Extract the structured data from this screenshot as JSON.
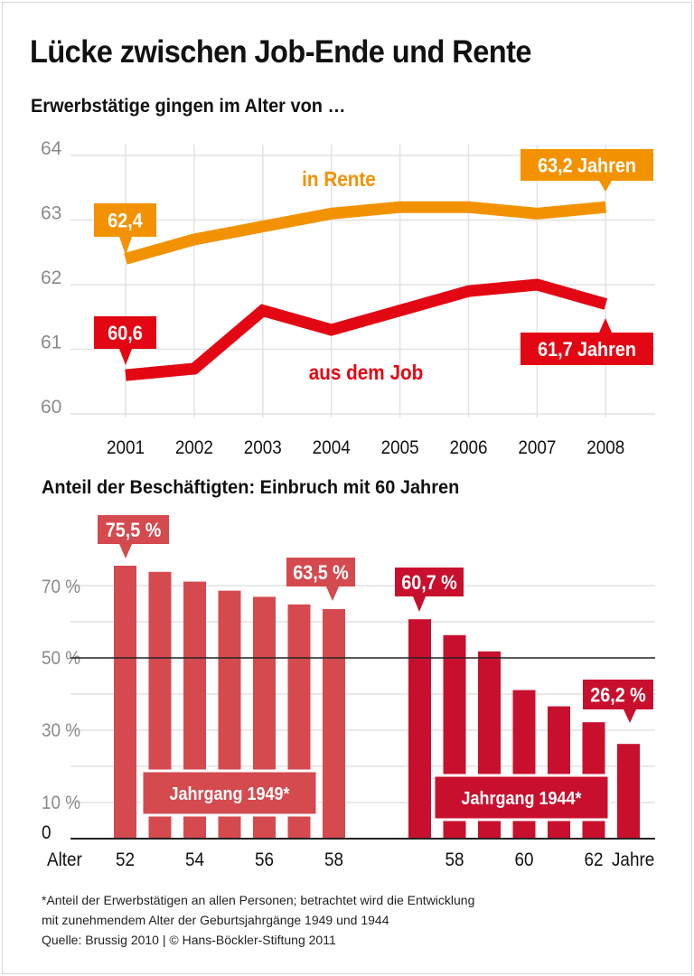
{
  "title": "Lücke zwischen Job-Ende und Rente",
  "colors": {
    "orange": "#F39200",
    "red": "#E30613",
    "bar_1949": "#D44A4F",
    "bar_1944": "#C8102E"
  },
  "chart_data": [
    {
      "type": "line",
      "title": "Erwerbstätige gingen im Alter von …",
      "x": [
        2001,
        2002,
        2003,
        2004,
        2005,
        2006,
        2007,
        2008
      ],
      "ylim": [
        60,
        64
      ],
      "yticks": [
        "60",
        "61",
        "62",
        "63",
        "64"
      ],
      "grid": true,
      "series": [
        {
          "name": "in Rente",
          "color": "#F39200",
          "values": [
            62.4,
            62.7,
            62.9,
            63.1,
            63.2,
            63.2,
            63.1,
            63.2
          ],
          "start_label": "62,4",
          "end_label": "63,2 Jahren"
        },
        {
          "name": "aus dem Job",
          "color": "#E30613",
          "values": [
            60.6,
            60.7,
            61.6,
            61.3,
            61.6,
            61.9,
            62.0,
            61.7
          ],
          "start_label": "60,6",
          "end_label": "61,7 Jahren"
        }
      ]
    },
    {
      "type": "bar",
      "title": "Anteil der Beschäftigten: Einbruch mit 60 Jahren",
      "ylim": [
        0,
        80
      ],
      "yticks": [
        "0",
        "10 %",
        "30 %",
        "50 %",
        "70 %"
      ],
      "xlabel": "Alter",
      "xunit": "Jahre",
      "grid": true,
      "series": [
        {
          "name": "Jahrgang 1949*",
          "color": "#D44A4F",
          "ages": [
            52,
            53,
            54,
            55,
            56,
            57,
            58
          ],
          "values": [
            75.5,
            73.8,
            71.1,
            68.6,
            66.9,
            64.8,
            63.5
          ],
          "tick_labels": [
            "52",
            "54",
            "56",
            "58"
          ],
          "first_label": "75,5 %",
          "last_label": "63,5 %"
        },
        {
          "name": "Jahrgang 1944*",
          "color": "#C8102E",
          "ages": [
            57,
            58,
            59,
            60,
            61,
            62,
            63
          ],
          "values": [
            60.7,
            56.3,
            51.8,
            41.1,
            36.6,
            32.2,
            26.2
          ],
          "tick_labels": [
            "58",
            "60",
            "62"
          ],
          "first_label": "60,7 %",
          "last_label": "26,2 %"
        }
      ]
    }
  ],
  "footnote": [
    "*Anteil der Erwerbstätigen an allen Personen; betrachtet wird die Entwicklung",
    "mit zunehmendem Alter der Geburtsjahrgänge 1949 und 1944",
    "Quelle: Brussig 2010 | © Hans-Böckler-Stiftung 2011"
  ]
}
